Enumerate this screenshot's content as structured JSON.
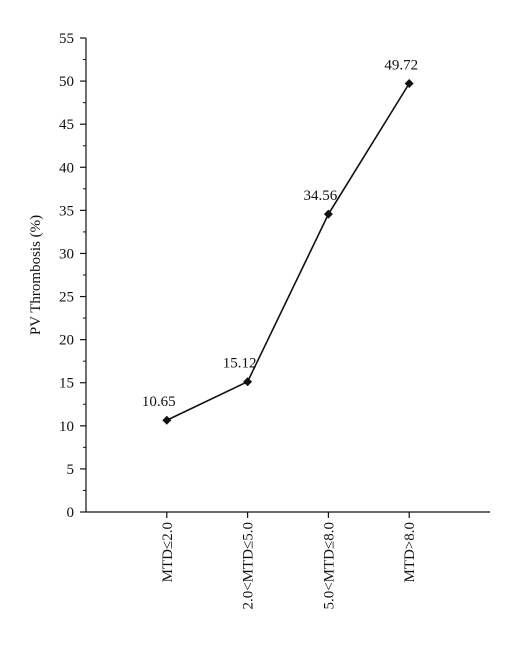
{
  "chart_data": {
    "type": "line",
    "categories": [
      "MTD≤2.0",
      "2.0<MTD≤5.0",
      "5.0<MTD≤8.0",
      "MTD>8.0"
    ],
    "series": [
      {
        "values": [
          10.65,
          15.12,
          34.56,
          49.72
        ]
      }
    ],
    "data_labels": [
      "10.65",
      "15.12",
      "34.56",
      "49.72"
    ],
    "title": "",
    "xlabel": "",
    "ylabel": "PV Thrombosis (%)",
    "ylim": [
      0,
      55
    ],
    "yticks": [
      0,
      5,
      10,
      15,
      20,
      25,
      30,
      35,
      40,
      45,
      50,
      55
    ],
    "grid": false,
    "legend": "none",
    "marker": "diamond",
    "line_color": "#111111"
  }
}
